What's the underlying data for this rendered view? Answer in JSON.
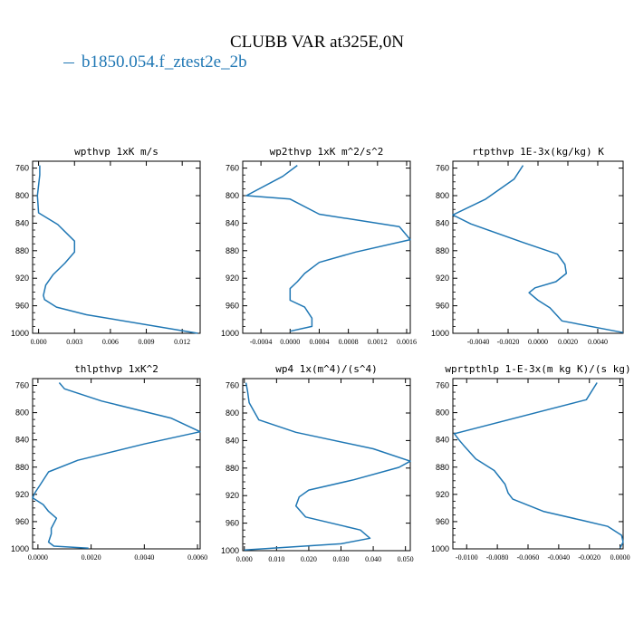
{
  "title": "CLUBB VAR at325E,0N",
  "legend": {
    "label": "b1850.054.f_ztest2e_2b",
    "color": "#1f77b4"
  },
  "chart_data": [
    {
      "type": "line",
      "title": "wpthvp  1xK m/s",
      "xlim": [
        -0.0005,
        0.0135
      ],
      "ylim": [
        1000,
        750
      ],
      "xticks": [
        0.0,
        0.003,
        0.006,
        0.009,
        0.012
      ],
      "xtick_labels": [
        "0.000",
        "0.003",
        "0.006",
        "0.009",
        "0.012"
      ],
      "yticks": [
        760,
        800,
        840,
        880,
        920,
        960,
        1000
      ],
      "series": [
        {
          "color": "#1f77b4",
          "x": [
            0.0001,
            0.0001,
            0.0,
            -0.0001,
            0.0,
            0.0016,
            0.003,
            0.003,
            0.0022,
            0.0012,
            0.0006,
            0.0004,
            0.0005,
            0.0015,
            0.004,
            0.0133
          ],
          "y": [
            756,
            770,
            785,
            800,
            825,
            842,
            866,
            882,
            898,
            915,
            930,
            945,
            951,
            962,
            973,
            1000
          ]
        }
      ]
    },
    {
      "type": "line",
      "title": "wp2thvp  1xK m^2/s^2",
      "xlim": [
        -0.00065,
        0.00165
      ],
      "ylim": [
        1000,
        750
      ],
      "xticks": [
        -0.0004,
        0.0,
        0.0004,
        0.0008,
        0.0012,
        0.0016
      ],
      "xtick_labels": [
        "-0.0004",
        "0.0000",
        "0.0004",
        "0.0008",
        "0.0012",
        "0.0016"
      ],
      "yticks": [
        760,
        800,
        840,
        880,
        920,
        960,
        1000
      ],
      "series": [
        {
          "color": "#1f77b4",
          "x": [
            0.0001,
            -0.0001,
            -0.0006,
            0.0,
            0.0004,
            0.0015,
            0.00165,
            0.0009,
            0.0004,
            0.0002,
            0.0001,
            0.0,
            0.0,
            0.0002,
            0.0003,
            0.0003,
            0.0
          ],
          "y": [
            756,
            772,
            800,
            805,
            827,
            845,
            864,
            882,
            897,
            913,
            925,
            935,
            952,
            962,
            978,
            990,
            997
          ]
        }
      ]
    },
    {
      "type": "line",
      "title": "rtpthvp  1E-3x(kg/kg) K",
      "xlim": [
        -0.0057,
        0.0057
      ],
      "ylim": [
        1000,
        750
      ],
      "xticks": [
        -0.004,
        -0.002,
        0.0,
        0.002,
        0.004
      ],
      "xtick_labels": [
        "-0.0040",
        "-0.0020",
        "0.0000",
        "0.0020",
        "0.0040"
      ],
      "yticks": [
        760,
        800,
        840,
        880,
        920,
        960,
        1000
      ],
      "series": [
        {
          "color": "#1f77b4",
          "x": [
            -0.001,
            -0.0016,
            -0.0035,
            -0.0057,
            -0.0045,
            -0.001,
            0.0013,
            0.0018,
            0.0019,
            0.0012,
            -0.0002,
            -0.0006,
            0.0,
            0.0008,
            0.0016,
            0.0057
          ],
          "y": [
            756,
            776,
            805,
            828,
            841,
            868,
            885,
            900,
            913,
            925,
            934,
            941,
            952,
            963,
            982,
            999
          ]
        }
      ]
    },
    {
      "type": "line",
      "title": "thlpthvp  1xK^2",
      "xlim": [
        -0.0002,
        0.0061
      ],
      "ylim": [
        1000,
        750
      ],
      "xticks": [
        0.0,
        0.002,
        0.004,
        0.006
      ],
      "xtick_labels": [
        "0.0000",
        "0.0020",
        "0.0040",
        "0.0060"
      ],
      "yticks": [
        760,
        800,
        840,
        880,
        920,
        960,
        1000
      ],
      "series": [
        {
          "color": "#1f77b4",
          "x": [
            0.0008,
            0.001,
            0.0024,
            0.005,
            0.0061,
            0.004,
            0.0015,
            0.0004,
            0.0001,
            -0.0001,
            -0.0002,
            0.0002,
            0.0004,
            0.0007,
            0.0005,
            0.0005,
            0.0004,
            0.0006,
            0.0019
          ],
          "y": [
            756,
            765,
            783,
            808,
            828,
            846,
            870,
            887,
            905,
            917,
            925,
            935,
            945,
            955,
            970,
            978,
            990,
            996,
            999
          ]
        }
      ]
    },
    {
      "type": "line",
      "title": "wp4  1x(m^4)/(s^4)",
      "xlim": [
        -0.0005,
        0.0515
      ],
      "ylim": [
        1000,
        750
      ],
      "xticks": [
        0.0,
        0.01,
        0.02,
        0.03,
        0.04,
        0.05
      ],
      "xtick_labels": [
        "0.000",
        "0.010",
        "0.020",
        "0.030",
        "0.040",
        "0.050"
      ],
      "yticks": [
        760,
        800,
        840,
        880,
        920,
        960,
        1000
      ],
      "series": [
        {
          "color": "#1f77b4",
          "x": [
            0.0005,
            0.001,
            0.0015,
            0.0045,
            0.016,
            0.04,
            0.0515,
            0.048,
            0.034,
            0.02,
            0.017,
            0.016,
            0.019,
            0.036,
            0.039,
            0.03,
            0.0
          ],
          "y": [
            756,
            768,
            785,
            810,
            828,
            852,
            870,
            879,
            897,
            912,
            922,
            935,
            951,
            970,
            982,
            990,
            999
          ]
        }
      ]
    },
    {
      "type": "line",
      "title": "wprtpthlp  1-E-3x(m kg K)/(s kg)",
      "xlim": [
        -0.0109,
        0.0002
      ],
      "ylim": [
        1000,
        750
      ],
      "xticks": [
        -0.01,
        -0.008,
        -0.006,
        -0.004,
        -0.002,
        0.0
      ],
      "xtick_labels": [
        "-0.0100",
        "-0.0080",
        "-0.0060",
        "-0.0040",
        "-0.0020",
        "0.0000"
      ],
      "yticks": [
        760,
        800,
        840,
        880,
        920,
        960,
        1000
      ],
      "series": [
        {
          "color": "#1f77b4",
          "x": [
            -0.0015,
            -0.0022,
            -0.0108,
            -0.0105,
            -0.0102,
            -0.0094,
            -0.0082,
            -0.0075,
            -0.0073,
            -0.007,
            -0.005,
            -0.0025,
            -0.0008,
            0.0001,
            0.0002,
            0.0
          ],
          "y": [
            756,
            781,
            831,
            840,
            848,
            868,
            885,
            905,
            918,
            927,
            945,
            958,
            967,
            980,
            990,
            999
          ]
        }
      ]
    }
  ]
}
